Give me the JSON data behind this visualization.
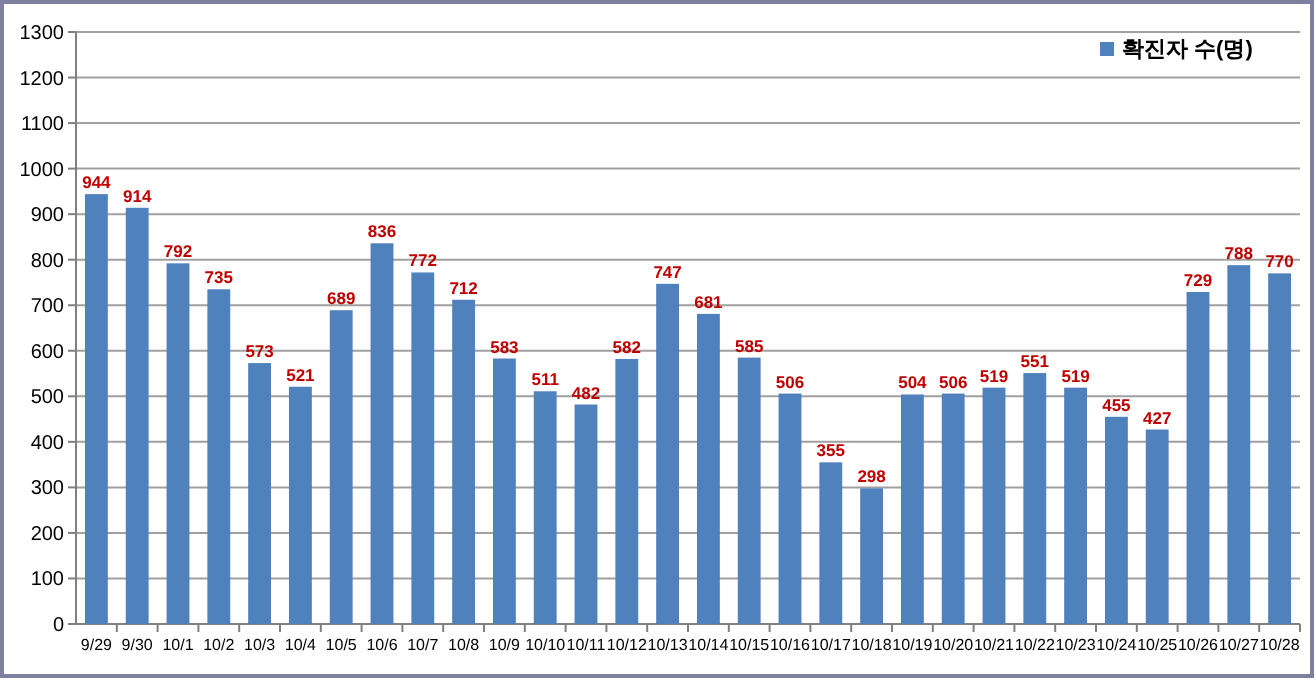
{
  "chart_data": {
    "type": "bar",
    "categories": [
      "9/29",
      "9/30",
      "10/1",
      "10/2",
      "10/3",
      "10/4",
      "10/5",
      "10/6",
      "10/7",
      "10/8",
      "10/9",
      "10/10",
      "10/11",
      "10/12",
      "10/13",
      "10/14",
      "10/15",
      "10/16",
      "10/17",
      "10/18",
      "10/19",
      "10/20",
      "10/21",
      "10/22",
      "10/23",
      "10/24",
      "10/25",
      "10/26",
      "10/27",
      "10/28"
    ],
    "series": [
      {
        "name": "확진자 수(명)",
        "color": "#4f81bd",
        "values": [
          944,
          914,
          792,
          735,
          573,
          521,
          689,
          836,
          772,
          712,
          583,
          511,
          482,
          582,
          747,
          681,
          585,
          506,
          355,
          298,
          504,
          506,
          519,
          551,
          519,
          455,
          427,
          729,
          788,
          770
        ]
      }
    ],
    "ylim": [
      0,
      1300
    ],
    "yticks": [
      0,
      100,
      200,
      300,
      400,
      500,
      600,
      700,
      800,
      900,
      1000,
      1100,
      1200,
      1300
    ],
    "grid": "y",
    "legend": "top right",
    "data_labels": true
  }
}
